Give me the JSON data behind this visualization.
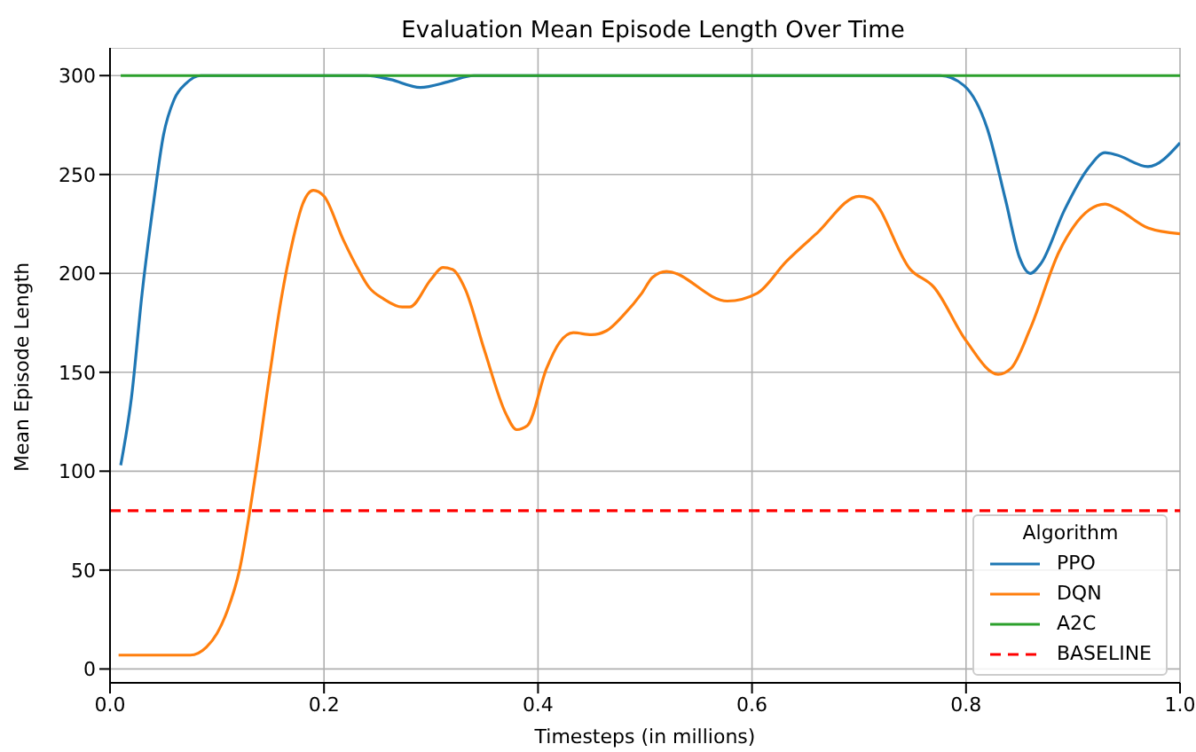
{
  "chart_data": {
    "type": "line",
    "title": "Evaluation Mean Episode Length Over Time",
    "xlabel": "Timesteps (in millions)",
    "ylabel": "Mean Episode Length",
    "legend_title": "Algorithm",
    "xlim": [
      0,
      1
    ],
    "xticks": [
      {
        "value": 0,
        "label": "0.0"
      },
      0.2,
      0.4,
      0.6,
      0.8,
      {
        "value": 1,
        "label": "1.0"
      }
    ],
    "ylim": [
      -7,
      314
    ],
    "yticks": [
      0,
      50,
      100,
      150,
      200,
      250,
      300
    ],
    "grid": true,
    "legend": "bottom right",
    "marker": "none",
    "line_style": "solid",
    "series": [
      {
        "name": "PPO",
        "color": "#1f77b4",
        "x": [
          0.01,
          0.02,
          0.03,
          0.041,
          0.05,
          0.06,
          0.071,
          0.085,
          0.1,
          0.24,
          0.262,
          0.29,
          0.317,
          0.34,
          0.776,
          0.798,
          0.82,
          0.837,
          0.85,
          0.86,
          0.87,
          0.892,
          0.914,
          0.93,
          0.94,
          0.97,
          1.0
        ],
        "values": [
          103,
          137,
          190,
          237,
          270,
          288,
          296,
          300,
          300,
          300,
          298,
          294,
          297,
          300,
          300,
          295,
          273,
          237,
          208,
          200,
          205,
          232,
          253,
          261,
          260,
          254,
          266
        ]
      },
      {
        "name": "DQN",
        "color": "#ff7f0e",
        "x": [
          0.008,
          0.075,
          0.09,
          0.1,
          0.11,
          0.121,
          0.135,
          0.149,
          0.16,
          0.171,
          0.18,
          0.19,
          0.2,
          0.218,
          0.232,
          0.242,
          0.256,
          0.273,
          0.28,
          0.3,
          0.311,
          0.32,
          0.332,
          0.35,
          0.37,
          0.38,
          0.39,
          0.408,
          0.42,
          0.433,
          0.45,
          0.464,
          0.48,
          0.497,
          0.507,
          0.52,
          0.577,
          0.605,
          0.632,
          0.66,
          0.7,
          0.71,
          0.748,
          0.77,
          0.8,
          0.83,
          0.842,
          0.86,
          0.887,
          0.93,
          0.94,
          0.97,
          1.0
        ],
        "values": [
          7,
          7,
          11,
          18,
          30,
          50,
          95,
          148,
          187,
          217,
          235,
          242,
          239,
          217,
          202,
          193,
          187,
          183,
          183,
          197,
          203,
          202,
          192,
          161,
          129,
          121,
          123,
          152,
          165,
          170,
          169,
          171,
          179,
          190,
          198,
          201,
          186,
          190,
          206,
          220,
          239,
          238,
          202,
          193,
          166,
          149,
          152,
          172,
          211,
          235,
          233,
          223,
          220
        ]
      },
      {
        "name": "A2C",
        "color": "#2ca02c",
        "x": [
          0.01,
          1.0
        ],
        "values": [
          300,
          300
        ]
      }
    ],
    "ref_lines": [
      {
        "axis": "y",
        "value": 80,
        "label": "BASELINE",
        "color": "#ff0000",
        "line_style": "dashed"
      }
    ]
  }
}
